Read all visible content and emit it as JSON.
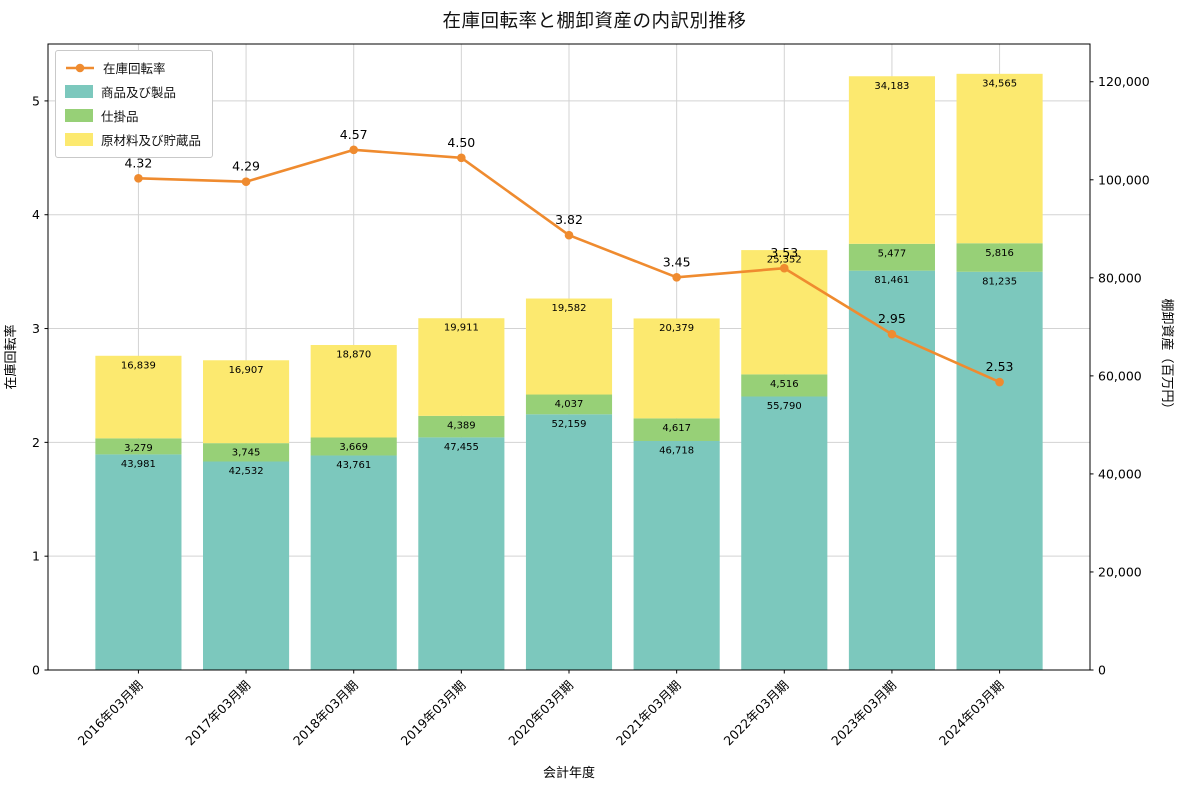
{
  "chart_data": {
    "type": "bar",
    "overlay": "line",
    "stacked": true,
    "title": "在庫回転率と棚卸資産の内訳別推移",
    "xlabel": "会計年度",
    "ylabel_left": "在庫回転率",
    "ylabel_right": "棚卸資産（百万円）",
    "categories": [
      "2016年03月期",
      "2017年03月期",
      "2018年03月期",
      "2019年03月期",
      "2020年03月期",
      "2021年03月期",
      "2022年03月期",
      "2023年03月期",
      "2024年03月期"
    ],
    "bar_series": [
      {
        "name": "商品及び製品",
        "color": "#7cc8bd",
        "values": [
          43981,
          42532,
          43761,
          47455,
          52159,
          46718,
          55790,
          81461,
          81235
        ]
      },
      {
        "name": "仕掛品",
        "color": "#97d077",
        "values": [
          3279,
          3745,
          3669,
          4389,
          4037,
          4617,
          4516,
          5477,
          5816
        ]
      },
      {
        "name": "原材料及び貯蔵品",
        "color": "#fce96f",
        "values": [
          16839,
          16907,
          18870,
          19911,
          19582,
          20379,
          25352,
          34183,
          34565
        ]
      }
    ],
    "line_series": {
      "name": "在庫回転率",
      "color": "#ef8b2f",
      "values": [
        4.32,
        4.29,
        4.57,
        4.5,
        3.82,
        3.45,
        3.53,
        2.95,
        2.53
      ]
    },
    "ylim_left": [
      0,
      5.5
    ],
    "ylim_right": [
      0,
      127700
    ],
    "yticks_left": [
      0,
      1,
      2,
      3,
      4,
      5
    ],
    "yticks_right": [
      0,
      20000,
      40000,
      60000,
      80000,
      100000,
      120000
    ],
    "grid": true,
    "grid_color": "#d3d3d3",
    "legend_position": "upper left"
  }
}
